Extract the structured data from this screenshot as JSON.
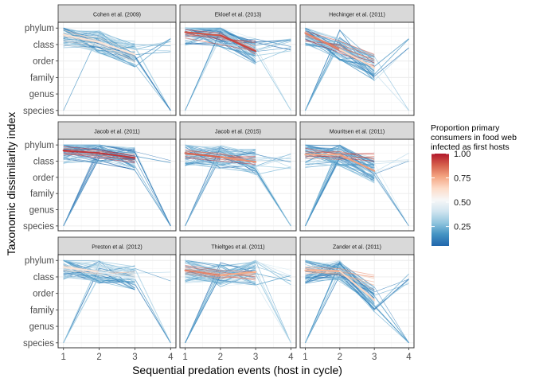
{
  "chart_data": {
    "type": "line",
    "xlabel": "Sequential predation events (host in cycle)",
    "ylabel": "Taxonomic dissimilarity index",
    "x_ticks": [
      1,
      2,
      3,
      4
    ],
    "y_ticks": [
      "species",
      "genus",
      "family",
      "order",
      "class",
      "phylum"
    ],
    "y_values": [
      0,
      1,
      2,
      3,
      4,
      5
    ],
    "xlim": [
      0.85,
      4.15
    ],
    "ylim": [
      -0.3,
      5.35
    ],
    "grid": true,
    "legend": {
      "title_lines": [
        "Proportion primary",
        "consumers in food web",
        "infected as first hosts"
      ],
      "ticks": [
        "1.00",
        "0.75",
        "0.50",
        "0.25"
      ],
      "tick_values": [
        1.0,
        0.75,
        0.5,
        0.25
      ],
      "range": [
        0.05,
        1.0
      ],
      "colors": [
        "#2166ac",
        "#4393c3",
        "#92c5de",
        "#d1e5f0",
        "#f7f7f7",
        "#fddbc7",
        "#f4a582",
        "#d6604d",
        "#b2182b"
      ],
      "placement": "right"
    },
    "panels": [
      {
        "title": "Cohen et al. (2009)",
        "mean": [
          [
            1,
            4.6,
            0.62
          ],
          [
            2,
            4.15,
            0.6
          ],
          [
            3,
            3.4,
            0.6
          ]
        ],
        "rainbow": [
          [
            4.3,
            4.0,
            3.2
          ],
          [
            4.7,
            4.4,
            3.6
          ],
          [
            4.9,
            4.2,
            3.3
          ],
          [
            4.0,
            3.7,
            3.5
          ],
          [
            4.2,
            3.9,
            2.9
          ],
          [
            4.5,
            4.1,
            3.0
          ]
        ]
      },
      {
        "title": "Ekloef et al. (2013)",
        "mean": [
          [
            1,
            4.75,
            0.9
          ],
          [
            2,
            4.55,
            0.9
          ],
          [
            3,
            3.6,
            0.95
          ]
        ],
        "rainbow": [
          [
            4.8,
            4.5,
            3.9
          ],
          [
            4.6,
            4.4,
            4.1
          ],
          [
            4.9,
            4.7,
            3.4
          ],
          [
            4.5,
            4.6,
            3.7
          ],
          [
            4.4,
            4.0,
            3.6
          ],
          [
            4.7,
            4.3,
            4.2
          ]
        ]
      },
      {
        "title": "Hechinger et al. (2011)",
        "mean": [
          [
            1,
            4.7,
            0.9
          ],
          [
            2,
            3.7,
            0.75
          ],
          [
            3,
            2.6,
            0.55
          ]
        ],
        "rainbow": [
          [
            4.5,
            3.9,
            3.0
          ],
          [
            4.8,
            4.2,
            3.4
          ],
          [
            4.3,
            3.5,
            2.7
          ],
          [
            4.6,
            3.8,
            3.1
          ],
          [
            4.2,
            4.0,
            3.3
          ],
          [
            4.7,
            3.6,
            2.9
          ]
        ]
      },
      {
        "title": "Jacob et al. (2011)",
        "mean": [
          [
            1,
            4.65,
            0.95
          ],
          [
            2,
            4.5,
            0.95
          ],
          [
            3,
            4.2,
            0.95
          ]
        ],
        "rainbow": [
          [
            4.8,
            4.6,
            4.4
          ],
          [
            4.6,
            4.3,
            4.1
          ],
          [
            4.9,
            4.7,
            4.3
          ],
          [
            4.4,
            4.4,
            4.0
          ],
          [
            4.7,
            4.5,
            4.2
          ],
          [
            4.5,
            4.2,
            3.9
          ]
        ]
      },
      {
        "title": "Jacob et al. (2015)",
        "mean": [
          [
            1,
            4.5,
            0.9
          ],
          [
            2,
            4.25,
            0.85
          ],
          [
            3,
            3.95,
            0.75
          ]
        ],
        "rainbow": [
          [
            4.4,
            4.3,
            4.1
          ],
          [
            4.7,
            4.4,
            4.2
          ],
          [
            4.2,
            4.0,
            3.8
          ],
          [
            4.6,
            4.5,
            3.9
          ],
          [
            4.3,
            4.1,
            4.0
          ],
          [
            4.5,
            4.2,
            4.3
          ]
        ]
      },
      {
        "title": "Mouritsen et al. (2011)",
        "mean": [
          [
            1,
            4.4,
            0.9
          ],
          [
            2,
            4.4,
            0.6
          ],
          [
            3,
            3.4,
            0.95
          ]
        ],
        "rainbow": [
          [
            4.6,
            4.5,
            4.4
          ],
          [
            4.3,
            4.3,
            4.2
          ],
          [
            4.8,
            4.4,
            4.5
          ],
          [
            4.2,
            4.1,
            4.3
          ],
          [
            4.5,
            4.6,
            4.1
          ],
          [
            4.4,
            4.2,
            4.0
          ]
        ]
      },
      {
        "title": "Preston et al. (2012)",
        "mean": [
          [
            1,
            4.6,
            0.65
          ],
          [
            2,
            4.3,
            0.55
          ],
          [
            3,
            3.9,
            0.35
          ]
        ],
        "rainbow": [
          [
            4.5,
            4.4,
            4.2
          ],
          [
            4.7,
            4.3,
            4.1
          ],
          [
            4.4,
            4.2,
            4.3
          ],
          [
            4.6,
            4.1,
            4.0
          ]
        ]
      },
      {
        "title": "Thieltges et al. (2011)",
        "mean": [
          [
            1,
            4.4,
            0.85
          ],
          [
            2,
            4.1,
            0.8
          ],
          [
            3,
            4.3,
            0.7
          ]
        ],
        "rainbow": [
          [
            4.5,
            4.2,
            4.1
          ],
          [
            4.3,
            4.0,
            3.9
          ],
          [
            4.6,
            4.3,
            4.0
          ],
          [
            4.2,
            3.9,
            4.2
          ],
          [
            4.4,
            4.1,
            3.8
          ],
          [
            4.7,
            4.4,
            4.3
          ]
        ]
      },
      {
        "title": "Zander et al. (2011)",
        "mean": [
          [
            1,
            4.4,
            0.75
          ],
          [
            2,
            4.35,
            0.7
          ],
          [
            3,
            2.6,
            0.6
          ]
        ],
        "rainbow": [
          [
            4.5,
            4.4,
            3.9
          ],
          [
            4.3,
            4.2,
            3.5
          ],
          [
            4.6,
            4.5,
            4.1
          ],
          [
            4.2,
            4.3,
            3.2
          ],
          [
            4.4,
            4.1,
            3.7
          ],
          [
            4.5,
            4.3,
            4.0
          ]
        ]
      }
    ]
  }
}
